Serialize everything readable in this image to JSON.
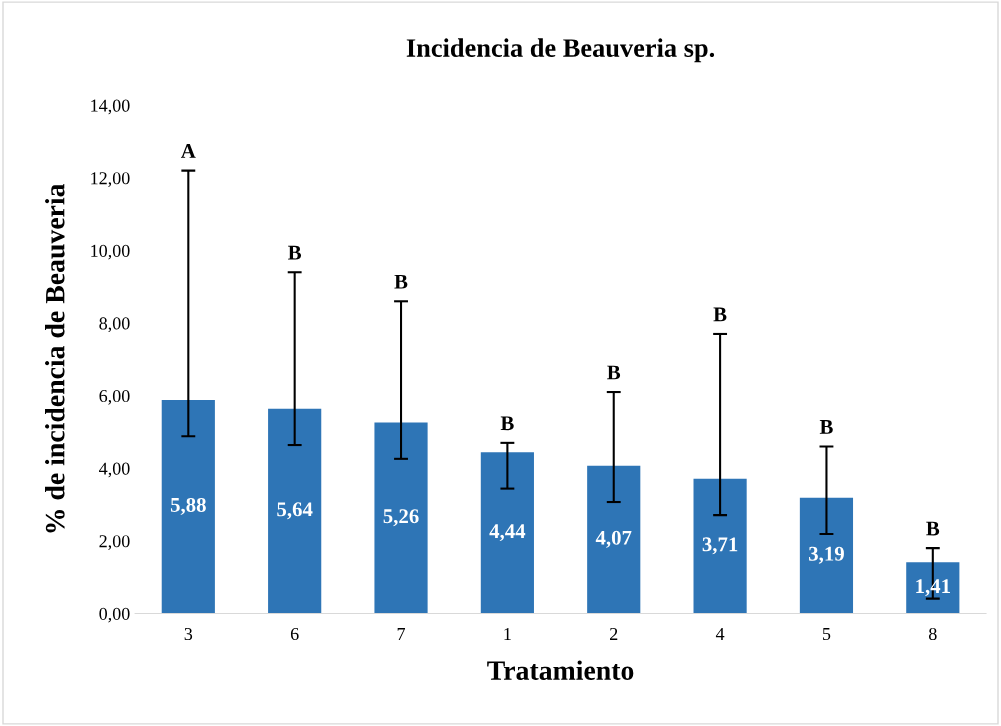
{
  "chart_data": {
    "type": "bar",
    "title": "Incidencia de Beauveria sp.",
    "xlabel": "Tratamiento",
    "ylabel": "% de incidencia de Beauveria",
    "categories": [
      "3",
      "6",
      "7",
      "1",
      "2",
      "4",
      "5",
      "8"
    ],
    "values": [
      5.88,
      5.64,
      5.26,
      4.44,
      4.07,
      3.71,
      3.19,
      1.41
    ],
    "value_labels": [
      "5,88",
      "5,64",
      "5,26",
      "4,44",
      "4,07",
      "3,71",
      "3,19",
      "1,41"
    ],
    "errors": [
      [
        4.88,
        12.2
      ],
      [
        4.64,
        9.4
      ],
      [
        4.26,
        8.6
      ],
      [
        3.44,
        4.7
      ],
      [
        3.07,
        6.1
      ],
      [
        2.71,
        7.7
      ],
      [
        2.19,
        4.6
      ],
      [
        0.41,
        1.8
      ]
    ],
    "color": "#2e75b6",
    "ylim": [
      0,
      14
    ],
    "yticks": [
      {
        "value": 0,
        "label": "0,00"
      },
      {
        "value": 2,
        "label": "2,00"
      },
      {
        "value": 4,
        "label": "4,00"
      },
      {
        "value": 6,
        "label": "6,00"
      },
      {
        "value": 8,
        "label": "8,00"
      },
      {
        "value": 10,
        "label": "10,00"
      },
      {
        "value": 12,
        "label": "12,00"
      },
      {
        "value": 14,
        "label": "14,00"
      }
    ],
    "annotations": [
      {
        "text": "A",
        "x": "3",
        "y": 12.2
      },
      {
        "text": "B",
        "x": "6",
        "y": 9.4
      },
      {
        "text": "B",
        "x": "7",
        "y": 8.6
      },
      {
        "text": "B",
        "x": "1",
        "y": 4.7
      },
      {
        "text": "B",
        "x": "2",
        "y": 6.1
      },
      {
        "text": "B",
        "x": "4",
        "y": 7.7
      },
      {
        "text": "B",
        "x": "5",
        "y": 4.6
      },
      {
        "text": "B",
        "x": "8",
        "y": 1.8
      }
    ],
    "grid": false,
    "legend": false
  }
}
